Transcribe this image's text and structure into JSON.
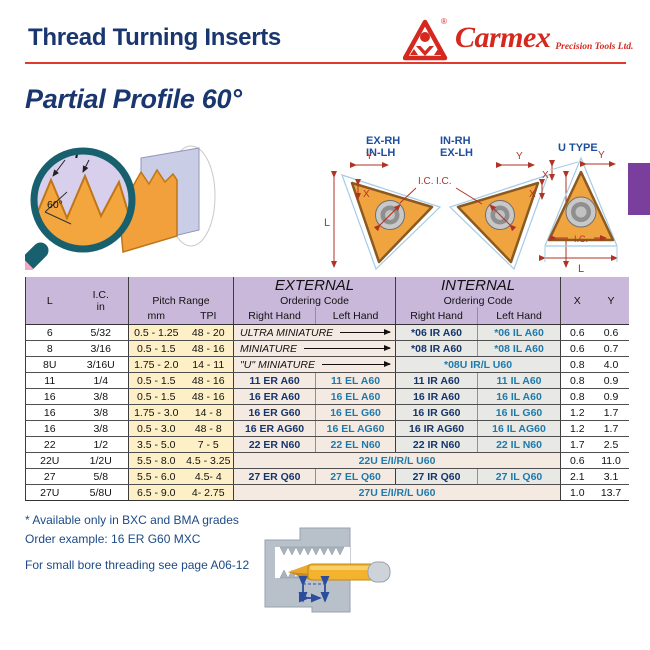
{
  "page": {
    "title": "Thread Turning Inserts",
    "section_title": "Partial Profile 60°"
  },
  "logo": {
    "brand": "Carmex",
    "suffix": "Precision Tools Ltd.",
    "registered": "®"
  },
  "diagram": {
    "magnifier": {
      "pitch_label": "P",
      "angle_label": "60°"
    },
    "insert_ex_rh_line1": "EX-RH",
    "insert_ex_rh_line2": "IN-LH",
    "insert_in_rh_line1": "IN-RH",
    "insert_in_rh_line2": "EX-LH",
    "insert_u_label": "U TYPE",
    "dim_l": "L",
    "dim_x": "X",
    "dim_y": "Y",
    "dim_ic": "I.C."
  },
  "table": {
    "headers": {
      "l": "L",
      "ic": "I.C.",
      "ic_unit": "in",
      "pitch_range": "Pitch Range",
      "mm": "mm",
      "tpi": "TPI",
      "external": "EXTERNAL",
      "internal": "INTERNAL",
      "ordering_code": "Ordering Code",
      "right_hand": "Right Hand",
      "left_hand": "Left Hand",
      "x": "X",
      "y": "Y"
    },
    "rows": [
      [
        [
          "6",
          "l"
        ],
        [
          "5/32",
          "ic"
        ],
        [
          "0.5 - 1.25",
          "mm"
        ],
        [
          "48 - 20",
          "tpi"
        ],
        [
          "ULTRA MINIATURE",
          "extlabel",
          2
        ],
        [
          "*06 IR A60",
          "intR"
        ],
        [
          "*06 IL A60",
          "intL"
        ],
        [
          "0.6",
          "x"
        ],
        [
          "0.6",
          "y"
        ]
      ],
      [
        [
          "8",
          "l"
        ],
        [
          "3/16",
          "ic"
        ],
        [
          "0.5 - 1.5",
          "mm"
        ],
        [
          "48 - 16",
          "tpi"
        ],
        [
          "MINIATURE",
          "extlabel",
          2
        ],
        [
          "*08 IR A60",
          "intR"
        ],
        [
          "*08 IL A60",
          "intL"
        ],
        [
          "0.6",
          "x"
        ],
        [
          "0.7",
          "y"
        ]
      ],
      [
        [
          "8U",
          "l"
        ],
        [
          "3/16U",
          "ic"
        ],
        [
          "1.75 - 2.0",
          "mm"
        ],
        [
          "14 - 11",
          "tpi"
        ],
        [
          "\"U\" MINIATURE",
          "extlabel",
          2
        ],
        [
          "*08U IR/L U60",
          "intspan",
          2
        ],
        [
          "0.8",
          "x"
        ],
        [
          "4.0",
          "y"
        ]
      ],
      [
        [
          "11",
          "l"
        ],
        [
          "1/4",
          "ic"
        ],
        [
          "0.5 - 1.5",
          "mm"
        ],
        [
          "48 - 16",
          "tpi"
        ],
        [
          "11 ER A60",
          "extR"
        ],
        [
          "11 EL A60",
          "extL"
        ],
        [
          "11 IR A60",
          "intR"
        ],
        [
          "11 IL A60",
          "intL"
        ],
        [
          "0.8",
          "x"
        ],
        [
          "0.9",
          "y"
        ]
      ],
      [
        [
          "16",
          "l"
        ],
        [
          "3/8",
          "ic"
        ],
        [
          "0.5 - 1.5",
          "mm"
        ],
        [
          "48 - 16",
          "tpi"
        ],
        [
          "16 ER A60",
          "extR"
        ],
        [
          "16 EL A60",
          "extL"
        ],
        [
          "16 IR A60",
          "intR"
        ],
        [
          "16 IL A60",
          "intL"
        ],
        [
          "0.8",
          "x"
        ],
        [
          "0.9",
          "y"
        ]
      ],
      [
        [
          "16",
          "l"
        ],
        [
          "3/8",
          "ic"
        ],
        [
          "1.75 - 3.0",
          "mm"
        ],
        [
          "14  - 8",
          "tpi"
        ],
        [
          "16 ER G60",
          "extR"
        ],
        [
          "16 EL G60",
          "extL"
        ],
        [
          "16 IR G60",
          "intR"
        ],
        [
          "16 IL G60",
          "intL"
        ],
        [
          "1.2",
          "x"
        ],
        [
          "1.7",
          "y"
        ]
      ],
      [
        [
          "16",
          "l"
        ],
        [
          "3/8",
          "ic"
        ],
        [
          "0.5 - 3.0",
          "mm"
        ],
        [
          "48  - 8",
          "tpi"
        ],
        [
          "16 ER AG60",
          "extR"
        ],
        [
          "16 EL AG60",
          "extL"
        ],
        [
          "16 IR AG60",
          "intR"
        ],
        [
          "16 IL AG60",
          "intL"
        ],
        [
          "1.2",
          "x"
        ],
        [
          "1.7",
          "y"
        ]
      ],
      [
        [
          "22",
          "l"
        ],
        [
          "1/2",
          "ic"
        ],
        [
          "3.5 - 5.0",
          "mm"
        ],
        [
          "7  - 5",
          "tpi"
        ],
        [
          "22 ER N60",
          "extR"
        ],
        [
          "22 EL N60",
          "extL"
        ],
        [
          "22 IR N60",
          "intR"
        ],
        [
          "22 IL N60",
          "intL"
        ],
        [
          "1.7",
          "x"
        ],
        [
          "2.5",
          "y"
        ]
      ],
      [
        [
          "22U",
          "l"
        ],
        [
          "1/2U",
          "ic"
        ],
        [
          "5.5 - 8.0",
          "mm"
        ],
        [
          "4.5 - 3.25",
          "tpi"
        ],
        [
          "22U E/I/R/L U60",
          "fullspan",
          4
        ],
        [
          "0.6",
          "x"
        ],
        [
          "11.0",
          "y"
        ]
      ],
      [
        [
          "27",
          "l"
        ],
        [
          "5/8",
          "ic"
        ],
        [
          "5.5 - 6.0",
          "mm"
        ],
        [
          "4.5- 4",
          "tpi"
        ],
        [
          "27 ER Q60",
          "extR"
        ],
        [
          "27 EL Q60",
          "extL"
        ],
        [
          "27 IR Q60",
          "intR"
        ],
        [
          "27 IL Q60",
          "intL"
        ],
        [
          "2.1",
          "x"
        ],
        [
          "3.1",
          "y"
        ]
      ],
      [
        [
          "27U",
          "l"
        ],
        [
          "5/8U",
          "ic"
        ],
        [
          "6.5 - 9.0",
          "mm"
        ],
        [
          "4- 2.75",
          "tpi"
        ],
        [
          "27U E/I/R/L U60",
          "fullspan",
          4
        ],
        [
          "1.0",
          "x"
        ],
        [
          "13.7",
          "y"
        ]
      ]
    ]
  },
  "footnotes": {
    "grades": "* Available only in BXC and BMA grades",
    "order_example": "Order example: 16 ER G60 MXC",
    "small_bore": "For small bore threading see page A06-12"
  },
  "colors": {
    "brand_red": "#d5281e",
    "navy": "#1a366f",
    "header_lavender": "#c9b8da",
    "pitch_cream": "#fdf0c6",
    "external_beige": "#f5eae1",
    "internal_gray": "#e8e8e4",
    "code_right_hand": "#15356d",
    "code_left_hand": "#1e7aad",
    "tab_purple": "#7a3e9c",
    "dimension_red": "#b13326",
    "arrow_blue": "#2b4d9c"
  }
}
